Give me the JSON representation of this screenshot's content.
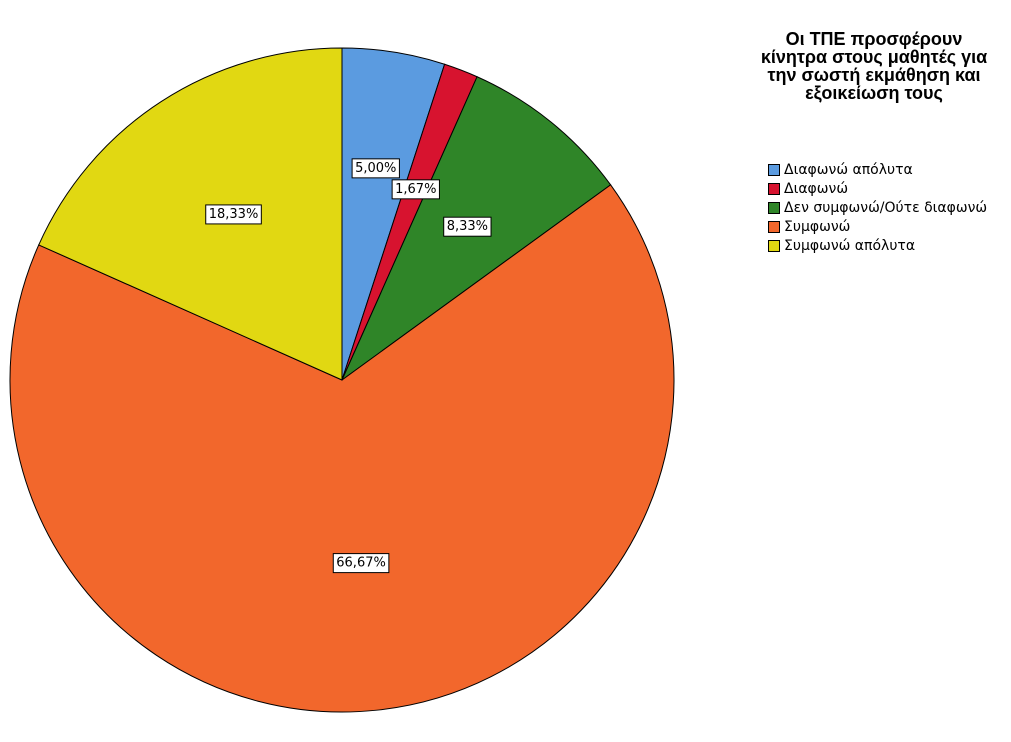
{
  "chart_data": {
    "type": "pie",
    "legend_title": "Οι ΤΠΕ προσφέρουν κίνητρα στους μαθητές για την σωστή εκμάθηση και εξοικείωση τους",
    "legend_position": "top-right",
    "start_angle": "12 o'clock",
    "direction": "clockwise",
    "slices": [
      {
        "label": "Διαφωνώ απόλυτα",
        "value": 5.0,
        "display": "5,00%",
        "color": "#5b9be0"
      },
      {
        "label": "Διαφωνώ",
        "value": 1.67,
        "display": "1,67%",
        "color": "#d7132f"
      },
      {
        "label": "Δεν συμφωνώ/Ούτε διαφωνώ",
        "value": 8.33,
        "display": "8,33%",
        "color": "#2f8528"
      },
      {
        "label": "Συμφωνώ",
        "value": 66.67,
        "display": "66,67%",
        "color": "#f2672c"
      },
      {
        "label": "Συμφωνώ απόλυτα",
        "value": 18.33,
        "display": "18,33%",
        "color": "#e1d812"
      }
    ]
  }
}
